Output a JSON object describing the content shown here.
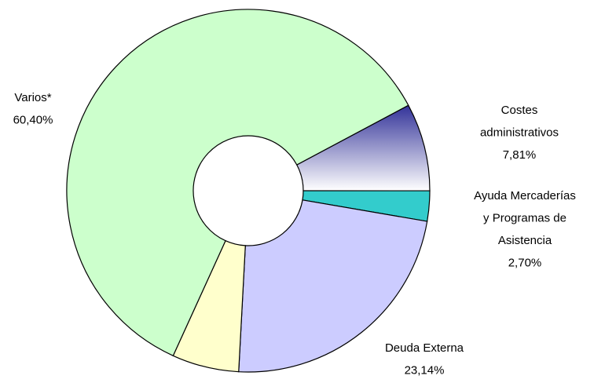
{
  "chart_data": {
    "type": "donut",
    "categories": [
      "Costes\nadministrativos",
      "Ayuda Mercaderías\ny Programas de\nAsistencia",
      "Deuda Externa",
      null,
      "Varios*"
    ],
    "values": [
      7.81,
      2.7,
      23.14,
      5.95,
      60.4
    ],
    "value_labels": [
      "7,81%",
      "2,70%",
      "23,14%",
      null,
      "60,40%"
    ],
    "colors": [
      "#333399",
      "#33cccc",
      "#ccccff",
      "#ffffcc",
      "#ccffcc"
    ]
  }
}
